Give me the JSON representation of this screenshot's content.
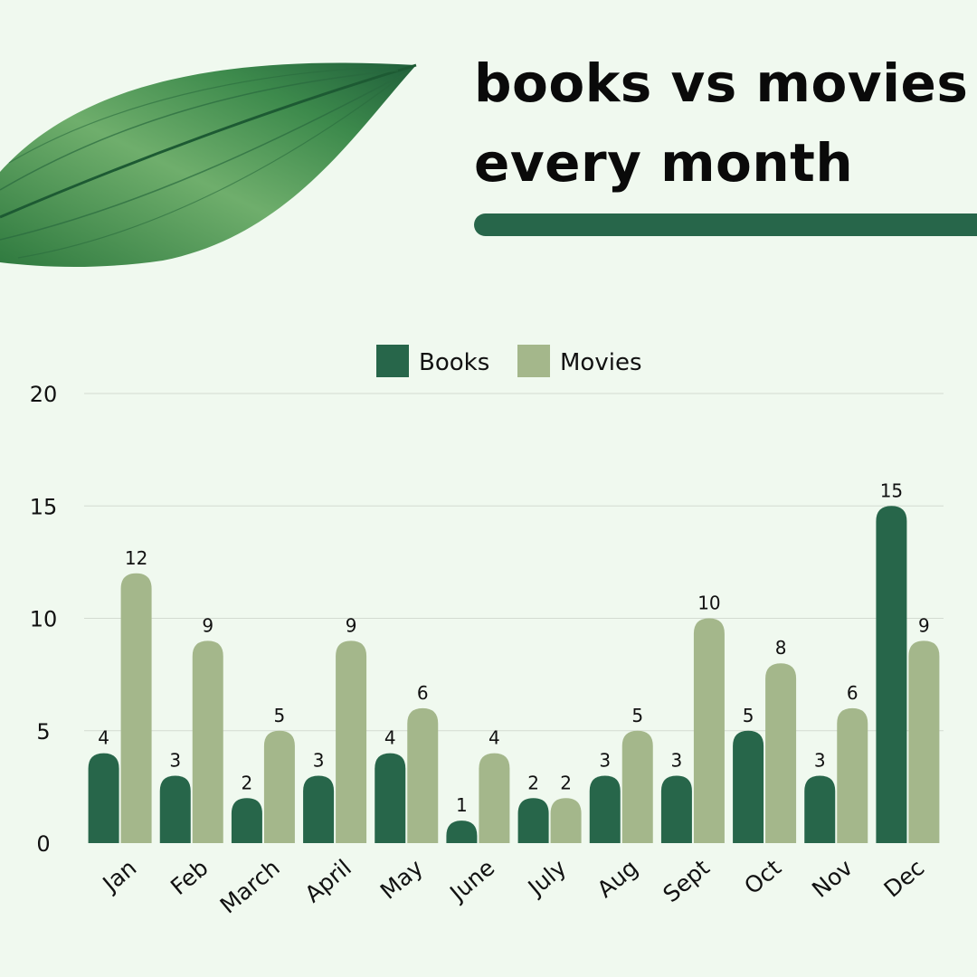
{
  "title_lines": [
    "books vs movies",
    "every month"
  ],
  "colors": {
    "books": "#27664a",
    "movies": "#a4b78b",
    "background": "#f0f9ef",
    "grid": "#d3dbd1",
    "leaf": "#4f9a57"
  },
  "chart_data": {
    "type": "bar",
    "title": "books vs movies every month",
    "categories": [
      "Jan",
      "Feb",
      "March",
      "April",
      "May",
      "June",
      "July",
      "Aug",
      "Sept",
      "Oct",
      "Nov",
      "Dec"
    ],
    "series": [
      {
        "name": "Books",
        "color": "#27664a",
        "values": [
          4,
          3,
          2,
          3,
          4,
          1,
          2,
          3,
          3,
          5,
          3,
          15
        ]
      },
      {
        "name": "Movies",
        "color": "#a4b78b",
        "values": [
          12,
          9,
          5,
          9,
          6,
          4,
          2,
          5,
          10,
          8,
          6,
          9
        ]
      }
    ],
    "ylim": [
      0,
      20
    ],
    "yticks": [
      0,
      5,
      10,
      15,
      20
    ],
    "grid": true,
    "legend": "top-center",
    "data_labels": true
  }
}
